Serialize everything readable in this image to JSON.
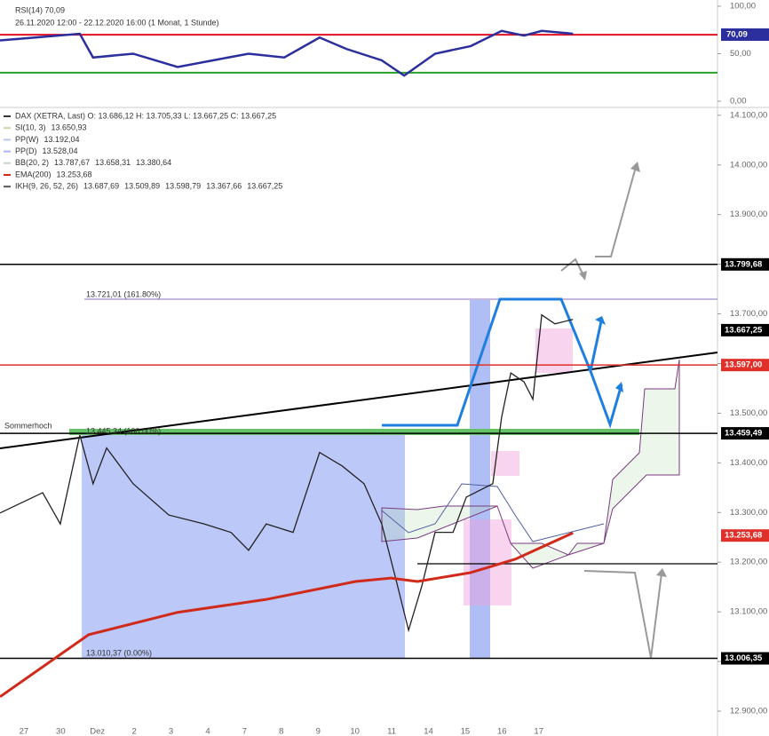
{
  "chart_data": [
    {
      "type": "line",
      "title": "RSI(14) 70,09",
      "subtitle": "26.11.2020 12:00 - 22.12.2020 16:00 (1 Monat, 1 Stunde)",
      "xlim": [
        -0.65,
        18.86
      ],
      "ylim": [
        -5.6,
        106.5
      ],
      "yticks": [
        {
          "value": 100,
          "label": "100,00"
        },
        {
          "value": 50,
          "label": "50,00"
        },
        {
          "value": 0,
          "label": "0,00"
        }
      ],
      "series": [
        {
          "name": "RSI(14)",
          "color": "#2b2f9e",
          "x": [
            -0.65,
            0.31,
            1.52,
            1.88,
            2.97,
            4.18,
            5.14,
            6.11,
            7.08,
            8.04,
            8.77,
            9.73,
            10.34,
            11.18,
            12.15,
            12.99,
            13.6,
            14.08,
            14.93
          ],
          "values": [
            64,
            67,
            71,
            46,
            50,
            36,
            43,
            50,
            46,
            67,
            55,
            43,
            27,
            50,
            58,
            74,
            69,
            74,
            71
          ]
        }
      ],
      "levels": [
        {
          "value": 70,
          "color": "#e01020"
        },
        {
          "value": 30,
          "color": "#2aa02a"
        }
      ],
      "current_label": {
        "value": 70.09,
        "label": "70,09",
        "color": "#2b2f9e"
      }
    },
    {
      "type": "line",
      "categories": [
        "27",
        "30",
        "Dez",
        "2",
        "3",
        "4",
        "7",
        "8",
        "9",
        "10",
        "11",
        "14",
        "15",
        "16",
        "17"
      ],
      "xlim": [
        -0.65,
        18.86
      ],
      "ylim": [
        12875,
        14114
      ],
      "yticks": [
        {
          "value": 14100,
          "label": "14.100,00"
        },
        {
          "value": 14000,
          "label": "14.000,00"
        },
        {
          "value": 13900,
          "label": "13.900,00"
        },
        {
          "value": 13800,
          "label": "13.800,00"
        },
        {
          "value": 13700,
          "label": "13.700,00"
        },
        {
          "value": 13600,
          "label": "13.600,00"
        },
        {
          "value": 13500,
          "label": "13.500,00"
        },
        {
          "value": 13400,
          "label": "13.400,00"
        },
        {
          "value": 13300,
          "label": "13.300,00"
        },
        {
          "value": 13200,
          "label": "13.200,00"
        },
        {
          "value": 13100,
          "label": "13.100,00"
        },
        {
          "value": 13000,
          "label": "13.000,00"
        },
        {
          "value": 12900,
          "label": "12.900,00"
        }
      ],
      "legend": [
        {
          "label": "DAX (XETRA, Last)  O: 13.686,12  H: 13.705,33  L: 13.667,25  C: 13.667,25",
          "color": "#333",
          "parts": [],
          "part_colors": []
        },
        {
          "label": "SI(10, 3)",
          "color": "#c9d9a8",
          "parts": [
            "13.650,93"
          ],
          "part_colors": [
            "#c9d9a8"
          ]
        },
        {
          "label": "PP(W)",
          "color": "#b9c6f0",
          "parts": [
            "13.192,04"
          ],
          "part_colors": [
            "#b9c6f0"
          ]
        },
        {
          "label": "PP(D)",
          "color": "#a9b6ee",
          "parts": [
            "13.528,04"
          ],
          "part_colors": [
            "#a9b6ee"
          ]
        },
        {
          "label": "BB(20, 2)",
          "color": "#c7d9c7",
          "parts": [
            "13.787,67",
            "13.658,31",
            "13.380,64"
          ],
          "part_colors": [
            "#c7d9c7",
            "#e7c0b0",
            "#e3cfa0"
          ]
        },
        {
          "label": "EMA(200)",
          "color": "#d02a1a",
          "parts": [
            "13.253,68"
          ],
          "part_colors": [
            "#d02a1a"
          ]
        },
        {
          "label": "IKH(9, 26, 52, 26)",
          "color": "#555",
          "parts": [
            "13.687,69",
            "13.509,89",
            "13.598,79",
            "13.367,66",
            "13.667,25"
          ],
          "part_colors": [
            "#3040b0",
            "#5050a0",
            "#7a3a80",
            "#9a3aa0",
            "#2a9030"
          ]
        }
      ],
      "series": [
        {
          "name": "DAX",
          "color": "#222",
          "x": [
            -0.65,
            0.51,
            0.99,
            1.52,
            1.88,
            2.25,
            2.97,
            3.94,
            4.9,
            5.63,
            6.11,
            6.59,
            7.32,
            8.04,
            8.65,
            9.25,
            9.73,
            10.1,
            10.46,
            10.82,
            11.18,
            11.67,
            12.03,
            12.75,
            12.99,
            13.24,
            13.6,
            13.84,
            14.08,
            14.44,
            14.93
          ],
          "values": [
            13299,
            13340,
            13277,
            13456,
            13358,
            13430,
            13358,
            13295,
            13277,
            13260,
            13224,
            13277,
            13260,
            13421,
            13394,
            13358,
            13277,
            13170,
            13063,
            13152,
            13260,
            13260,
            13331,
            13358,
            13492,
            13581,
            13563,
            13528,
            13698,
            13680,
            13689
          ]
        },
        {
          "name": "EMA(200)",
          "color": "#d02a1a",
          "x": [
            -0.65,
            1.76,
            4.18,
            6.59,
            9.01,
            9.98,
            10.7,
            12.15,
            13.36,
            14.93
          ],
          "values": [
            12929,
            13054,
            13099,
            13125,
            13161,
            13168,
            13161,
            13179,
            13206,
            13259
          ]
        }
      ],
      "levels": [
        {
          "value": 13799.68,
          "label": "13.799,68",
          "color": "#000",
          "line": true
        },
        {
          "value": 13667.25,
          "label": "13.667,25",
          "color": "#000",
          "line": false
        },
        {
          "value": 13597,
          "label": "13.597,00",
          "color": "#e0302a",
          "line": true
        },
        {
          "value": 13459.49,
          "label": "13.459,49",
          "color": "#000",
          "line": true
        },
        {
          "value": 13253.68,
          "label": "13.253,68",
          "color": "#e0302a",
          "line": false
        },
        {
          "value": 13006.35,
          "label": "13.006,35",
          "color": "#000",
          "line": true
        }
      ],
      "annotations": [
        "13.721,01 (161.80%)",
        "Sommerhoch",
        "13.445,34 (100.00%)",
        "13.010,37 (0.00%)"
      ]
    }
  ]
}
